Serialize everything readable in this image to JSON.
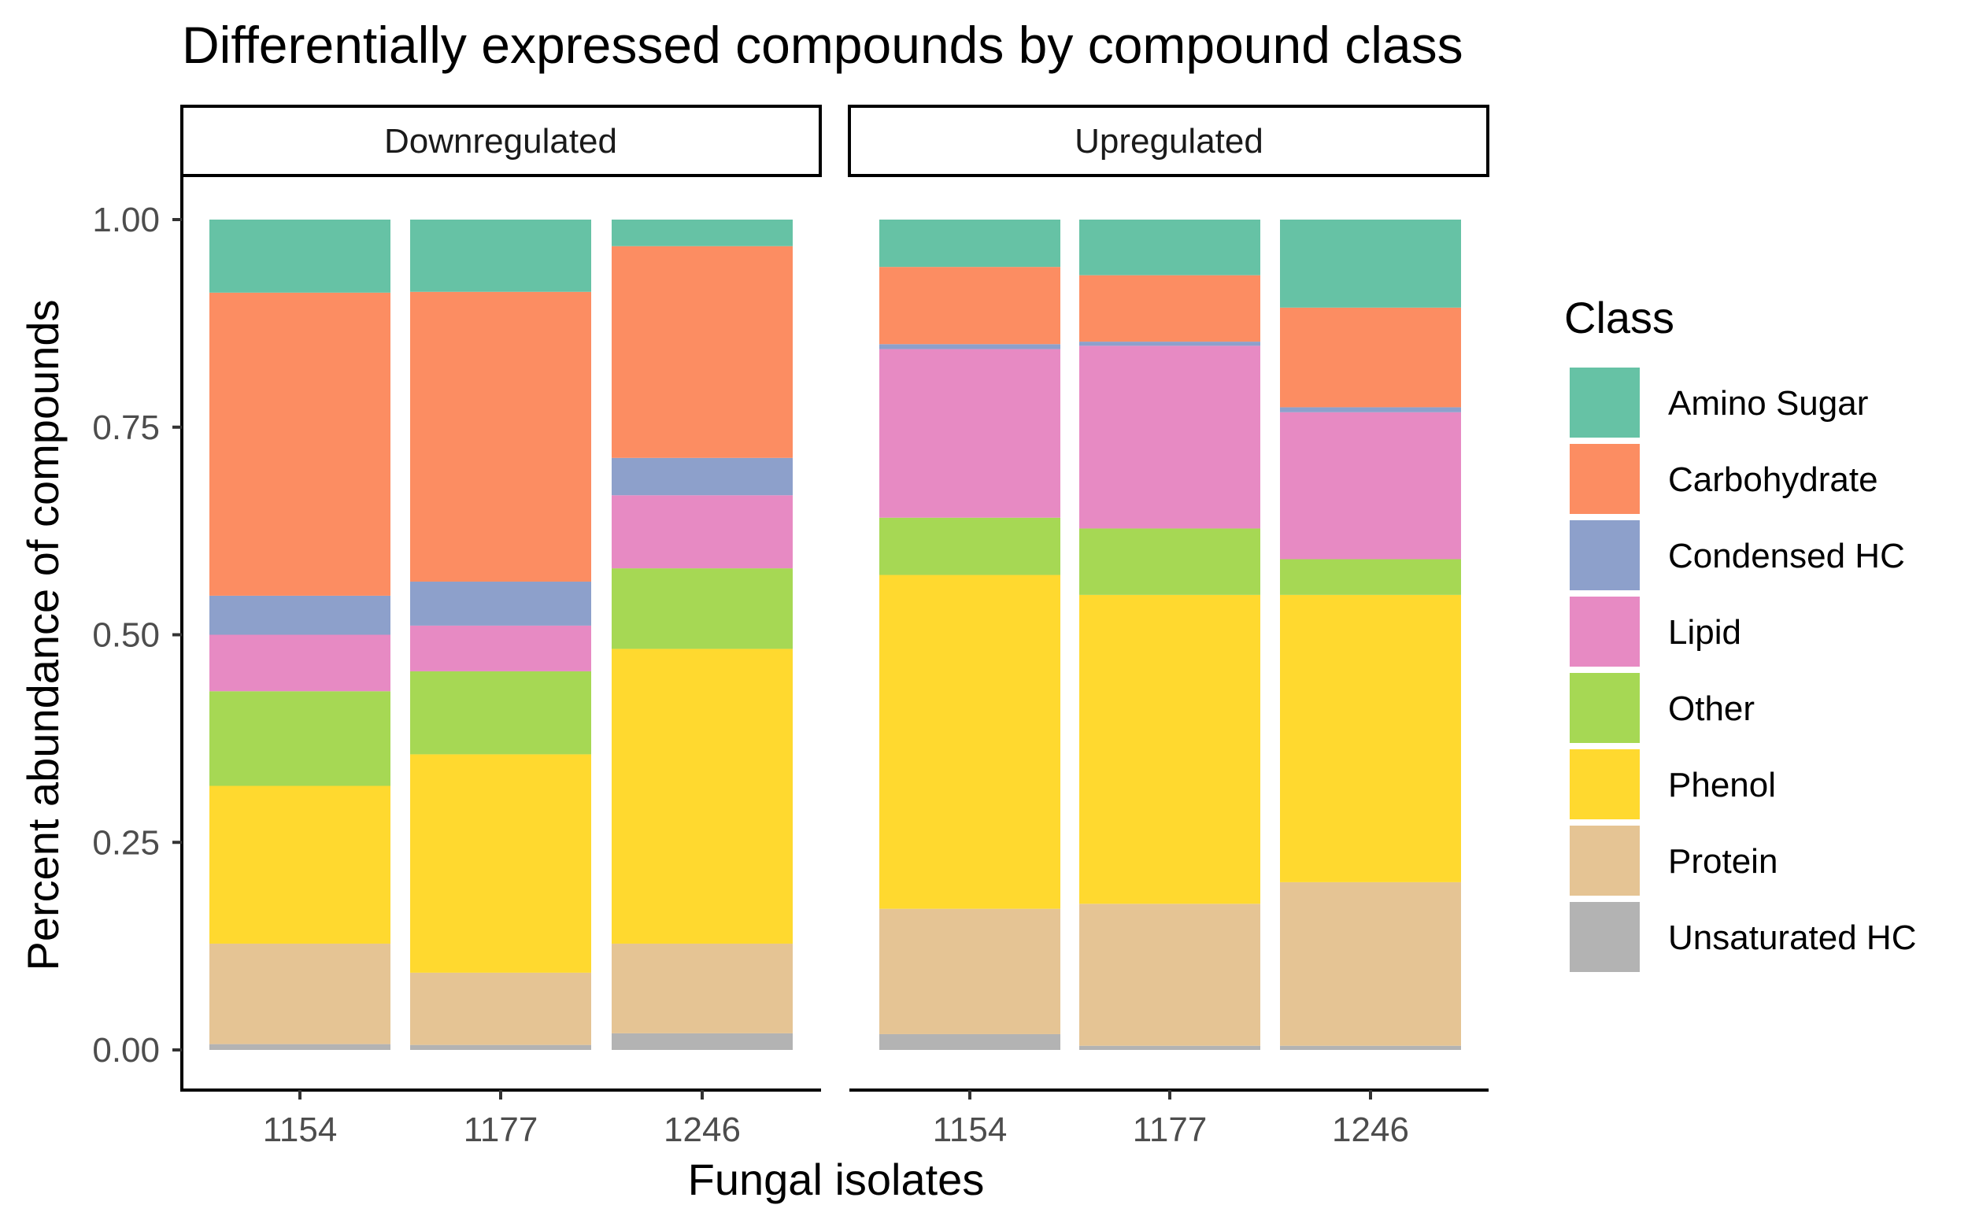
{
  "chart_data": {
    "type": "bar",
    "title": "Differentially expressed compounds by compound class",
    "xlabel": "Fungal isolates",
    "ylabel": "Percent abundance of compounds",
    "ylim": [
      0,
      1
    ],
    "yticks": [
      "0.00",
      "0.25",
      "0.50",
      "0.75",
      "1.00"
    ],
    "categories": [
      "1154",
      "1177",
      "1246"
    ],
    "panels": [
      "Downregulated",
      "Upregulated"
    ],
    "legend": {
      "title": "Class",
      "position": "right"
    },
    "stack_order": "top-to-bottom as in legend",
    "series": [
      {
        "name": "Amino Sugar",
        "color": "#66C2A5",
        "values": {
          "Downregulated": [
            0.088,
            0.087,
            0.032
          ],
          "Upregulated": [
            0.057,
            0.067,
            0.106
          ]
        }
      },
      {
        "name": "Carbohydrate",
        "color": "#FC8D62",
        "values": {
          "Downregulated": [
            0.365,
            0.349,
            0.255
          ],
          "Upregulated": [
            0.093,
            0.08,
            0.12
          ]
        }
      },
      {
        "name": "Condensed HC",
        "color": "#8DA0CB",
        "values": {
          "Downregulated": [
            0.047,
            0.053,
            0.045
          ],
          "Upregulated": [
            0.006,
            0.005,
            0.006
          ]
        }
      },
      {
        "name": "Lipid",
        "color": "#E78AC3",
        "values": {
          "Downregulated": [
            0.068,
            0.055,
            0.088
          ],
          "Upregulated": [
            0.203,
            0.22,
            0.177
          ]
        }
      },
      {
        "name": "Other",
        "color": "#A6D854",
        "values": {
          "Downregulated": [
            0.114,
            0.1,
            0.097
          ],
          "Upregulated": [
            0.069,
            0.08,
            0.043
          ]
        }
      },
      {
        "name": "Phenol",
        "color": "#FFD92F",
        "values": {
          "Downregulated": [
            0.19,
            0.263,
            0.355
          ],
          "Upregulated": [
            0.402,
            0.372,
            0.346
          ]
        }
      },
      {
        "name": "Protein",
        "color": "#E5C494",
        "values": {
          "Downregulated": [
            0.121,
            0.087,
            0.108
          ],
          "Upregulated": [
            0.151,
            0.171,
            0.197
          ]
        }
      },
      {
        "name": "Unsaturated HC",
        "color": "#B3B3B3",
        "values": {
          "Downregulated": [
            0.007,
            0.006,
            0.02
          ],
          "Upregulated": [
            0.019,
            0.005,
            0.005
          ]
        }
      }
    ]
  }
}
